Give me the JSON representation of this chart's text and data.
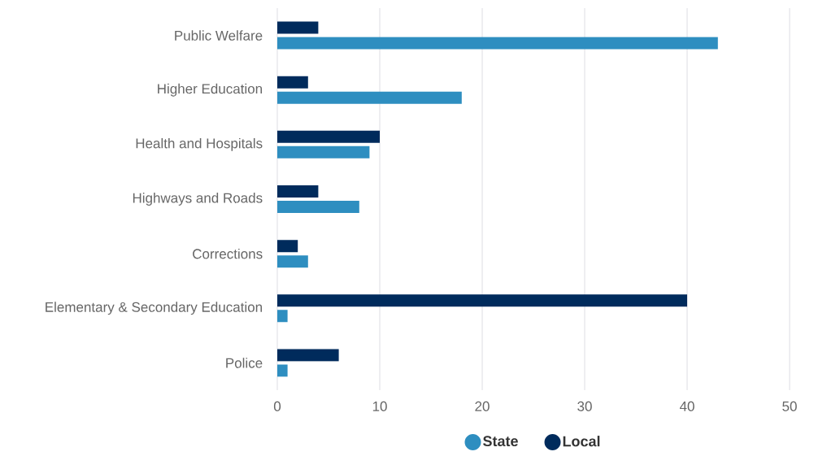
{
  "chart_data": {
    "type": "bar",
    "orientation": "horizontal",
    "categories": [
      "Public Welfare",
      "Higher Education",
      "Health and Hospitals",
      "Highways and Roads",
      "Corrections",
      "Elementary & Secondary Education",
      "Police"
    ],
    "series": [
      {
        "name": "State",
        "color": "#2e8ec0",
        "values": [
          43,
          18,
          9,
          8,
          3,
          1,
          1
        ]
      },
      {
        "name": "Local",
        "color": "#002b5c",
        "values": [
          4,
          3,
          10,
          4,
          2,
          40,
          6
        ]
      }
    ],
    "xlim": [
      0,
      50
    ],
    "xticks": [
      0,
      10,
      20,
      30,
      40,
      50
    ],
    "grid": "x",
    "legend": "bottom"
  }
}
